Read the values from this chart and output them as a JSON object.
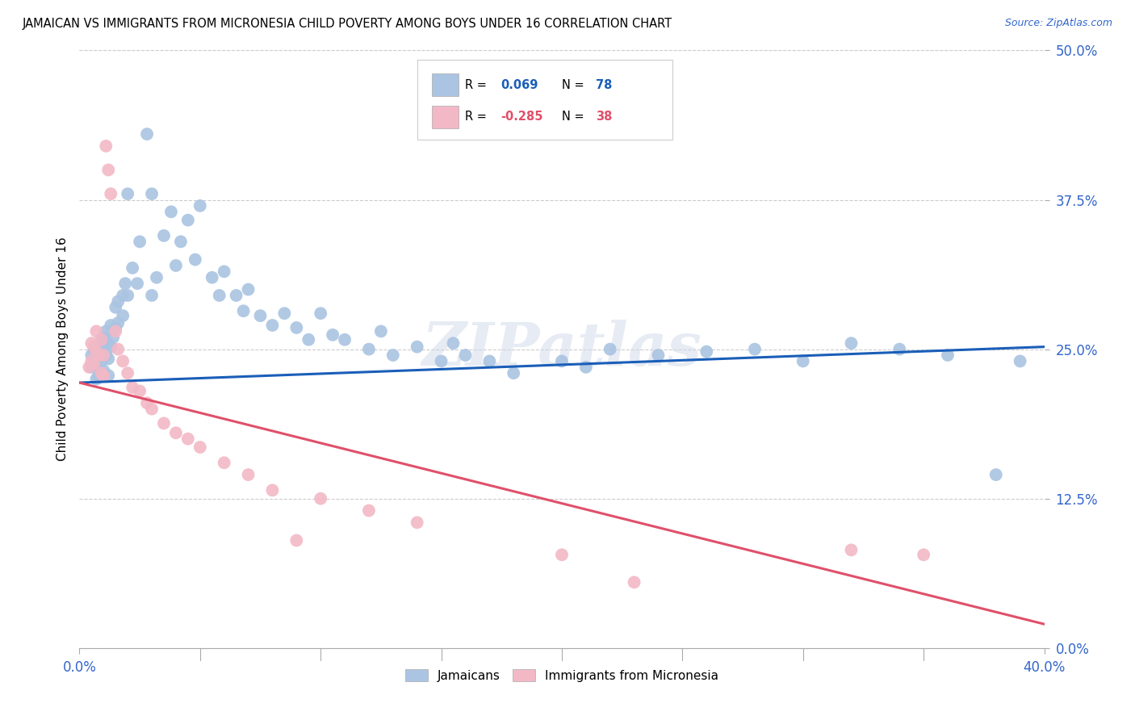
{
  "title": "JAMAICAN VS IMMIGRANTS FROM MICRONESIA CHILD POVERTY AMONG BOYS UNDER 16 CORRELATION CHART",
  "source": "Source: ZipAtlas.com",
  "xlabel_ticks_labels": [
    "0.0%",
    "40.0%"
  ],
  "xlabel_ticks_vals": [
    0.0,
    0.4
  ],
  "ylabel_ticks_labels": [
    "50.0%",
    "37.5%",
    "25.0%",
    "12.5%",
    "0.0%"
  ],
  "ylabel_ticks_vals": [
    0.5,
    0.375,
    0.25,
    0.125,
    0.0
  ],
  "ylabel_label": "Child Poverty Among Boys Under 16",
  "xmin": 0.0,
  "xmax": 0.4,
  "ymin": 0.0,
  "ymax": 0.5,
  "R_blue": 0.069,
  "N_blue": 78,
  "R_pink": -0.285,
  "N_pink": 38,
  "blue_color": "#aac4e2",
  "pink_color": "#f2b8c6",
  "blue_line_color": "#1a5eb8",
  "pink_line_color": "#e0506a",
  "legend_label_blue": "Jamaicans",
  "legend_label_pink": "Immigrants from Micronesia",
  "watermark": "ZIPatlas",
  "blue_line_start_y": 0.222,
  "blue_line_end_y": 0.252,
  "pink_line_start_y": 0.222,
  "pink_line_end_y": 0.02,
  "blue_x": [
    0.005,
    0.005,
    0.006,
    0.007,
    0.007,
    0.008,
    0.008,
    0.009,
    0.009,
    0.01,
    0.01,
    0.01,
    0.011,
    0.011,
    0.012,
    0.012,
    0.012,
    0.013,
    0.013,
    0.014,
    0.015,
    0.015,
    0.016,
    0.016,
    0.018,
    0.018,
    0.019,
    0.02,
    0.02,
    0.022,
    0.024,
    0.025,
    0.028,
    0.03,
    0.03,
    0.032,
    0.035,
    0.038,
    0.04,
    0.042,
    0.045,
    0.048,
    0.05,
    0.055,
    0.058,
    0.06,
    0.065,
    0.068,
    0.07,
    0.075,
    0.08,
    0.085,
    0.09,
    0.095,
    0.1,
    0.105,
    0.11,
    0.12,
    0.125,
    0.13,
    0.14,
    0.15,
    0.155,
    0.16,
    0.17,
    0.18,
    0.2,
    0.21,
    0.22,
    0.24,
    0.26,
    0.28,
    0.3,
    0.32,
    0.34,
    0.36,
    0.38,
    0.39
  ],
  "blue_y": [
    0.245,
    0.235,
    0.25,
    0.238,
    0.225,
    0.242,
    0.228,
    0.255,
    0.24,
    0.26,
    0.248,
    0.232,
    0.265,
    0.245,
    0.255,
    0.242,
    0.228,
    0.27,
    0.252,
    0.26,
    0.285,
    0.268,
    0.29,
    0.272,
    0.295,
    0.278,
    0.305,
    0.38,
    0.295,
    0.318,
    0.305,
    0.34,
    0.43,
    0.38,
    0.295,
    0.31,
    0.345,
    0.365,
    0.32,
    0.34,
    0.358,
    0.325,
    0.37,
    0.31,
    0.295,
    0.315,
    0.295,
    0.282,
    0.3,
    0.278,
    0.27,
    0.28,
    0.268,
    0.258,
    0.28,
    0.262,
    0.258,
    0.25,
    0.265,
    0.245,
    0.252,
    0.24,
    0.255,
    0.245,
    0.24,
    0.23,
    0.24,
    0.235,
    0.25,
    0.245,
    0.248,
    0.25,
    0.24,
    0.255,
    0.25,
    0.245,
    0.145,
    0.24
  ],
  "pink_x": [
    0.004,
    0.005,
    0.005,
    0.006,
    0.006,
    0.007,
    0.007,
    0.008,
    0.009,
    0.009,
    0.01,
    0.01,
    0.011,
    0.012,
    0.013,
    0.015,
    0.016,
    0.018,
    0.02,
    0.022,
    0.025,
    0.028,
    0.03,
    0.035,
    0.04,
    0.045,
    0.05,
    0.06,
    0.07,
    0.08,
    0.09,
    0.1,
    0.12,
    0.14,
    0.2,
    0.23,
    0.32,
    0.35
  ],
  "pink_y": [
    0.235,
    0.255,
    0.24,
    0.252,
    0.238,
    0.265,
    0.248,
    0.245,
    0.258,
    0.23,
    0.245,
    0.228,
    0.42,
    0.4,
    0.38,
    0.265,
    0.25,
    0.24,
    0.23,
    0.218,
    0.215,
    0.205,
    0.2,
    0.188,
    0.18,
    0.175,
    0.168,
    0.155,
    0.145,
    0.132,
    0.09,
    0.125,
    0.115,
    0.105,
    0.078,
    0.055,
    0.082,
    0.078
  ]
}
